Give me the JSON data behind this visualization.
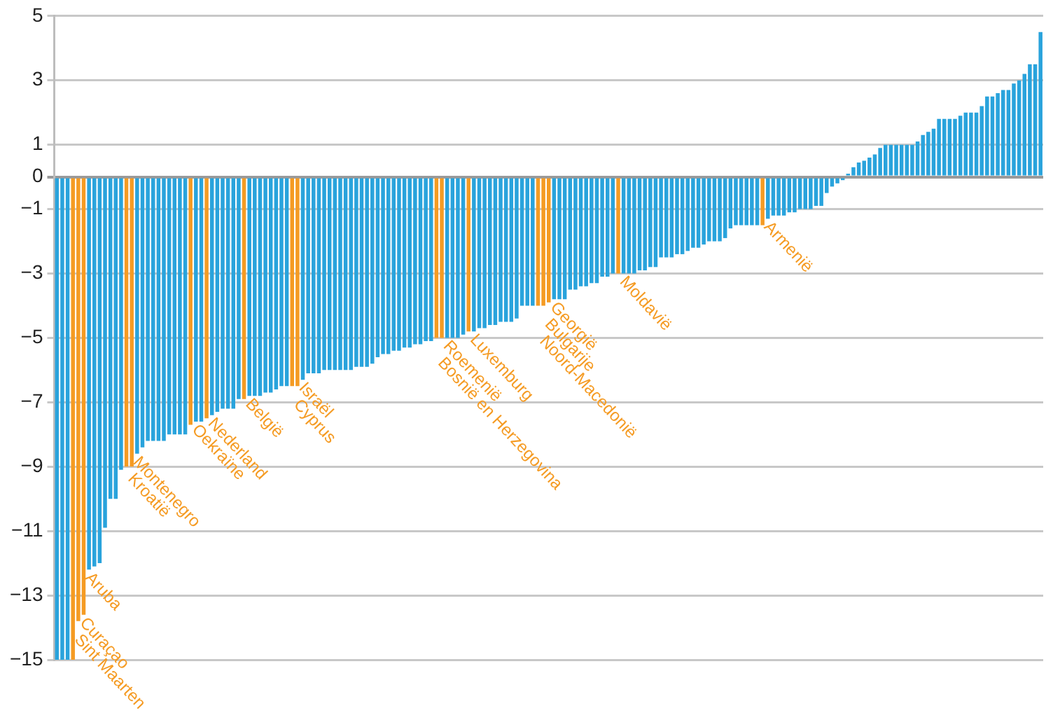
{
  "chart_data": {
    "type": "bar",
    "categories": [
      null,
      null,
      null,
      "Sint Maarten",
      "Curaçao",
      "Aruba",
      null,
      null,
      null,
      null,
      null,
      null,
      null,
      "Kroatië",
      "Montenegro",
      null,
      null,
      null,
      null,
      null,
      null,
      null,
      null,
      null,
      null,
      "Oekraïne",
      null,
      null,
      "Nederland",
      null,
      null,
      null,
      null,
      null,
      null,
      "België",
      null,
      null,
      null,
      null,
      null,
      null,
      null,
      null,
      "Cyprus",
      "Israël",
      null,
      null,
      null,
      null,
      null,
      null,
      null,
      null,
      null,
      null,
      null,
      null,
      null,
      null,
      null,
      null,
      null,
      null,
      null,
      null,
      null,
      null,
      null,
      null,
      null,
      "Bosnië en Herzegovina",
      "Roemenië",
      null,
      null,
      null,
      null,
      "Luxemburg",
      null,
      null,
      null,
      null,
      null,
      null,
      null,
      null,
      null,
      null,
      null,
      null,
      "Noord-Macedonië",
      "Bulgarije",
      "Georgië",
      null,
      null,
      null,
      null,
      null,
      null,
      null,
      null,
      null,
      null,
      null,
      null,
      "Moldavië",
      null,
      null,
      null,
      null,
      null,
      null,
      null,
      null,
      null,
      null,
      null,
      null,
      null,
      null,
      null,
      null,
      null,
      null,
      null,
      null,
      null,
      null,
      null,
      null,
      null,
      null,
      "Armenië",
      null,
      null,
      null,
      null,
      null,
      null,
      null,
      null,
      null,
      null,
      null,
      null,
      null,
      null,
      null,
      null,
      null,
      null,
      null,
      null,
      null,
      null,
      null,
      null,
      null,
      null,
      null,
      null,
      null,
      null,
      null,
      null,
      null,
      null,
      null,
      null,
      null,
      null,
      null,
      null,
      null,
      null,
      null,
      null,
      null,
      null,
      null,
      null,
      null,
      null,
      null,
      null
    ],
    "values": [
      -15,
      -15,
      -15,
      -15,
      -13.8,
      -13.6,
      -12.2,
      -12.1,
      -12,
      -10.9,
      -10,
      -10,
      -9.1,
      -9,
      -9,
      -8.6,
      -8.4,
      -8.2,
      -8.2,
      -8.2,
      -8.2,
      -8,
      -8,
      -8,
      -8,
      -7.7,
      -7.6,
      -7.6,
      -7.5,
      -7.4,
      -7.3,
      -7.2,
      -7.2,
      -7.2,
      -6.9,
      -6.9,
      -6.8,
      -6.8,
      -6.8,
      -6.7,
      -6.7,
      -6.6,
      -6.5,
      -6.5,
      -6.5,
      -6.5,
      -6.3,
      -6.1,
      -6.1,
      -6.1,
      -6,
      -6,
      -6,
      -6,
      -6,
      -6,
      -5.9,
      -5.9,
      -5.9,
      -5.8,
      -5.6,
      -5.5,
      -5.5,
      -5.4,
      -5.4,
      -5.3,
      -5.3,
      -5.2,
      -5.2,
      -5.1,
      -5.1,
      -5,
      -5,
      -5,
      -5,
      -5,
      -4.9,
      -4.8,
      -4.8,
      -4.7,
      -4.7,
      -4.6,
      -4.6,
      -4.5,
      -4.5,
      -4.5,
      -4.4,
      -4,
      -4,
      -4,
      -4,
      -4,
      -3.9,
      -3.8,
      -3.8,
      -3.8,
      -3.5,
      -3.5,
      -3.4,
      -3.4,
      -3.3,
      -3.3,
      -3.1,
      -3.1,
      -3,
      -3,
      -3,
      -3,
      -3,
      -2.9,
      -2.9,
      -2.8,
      -2.8,
      -2.5,
      -2.5,
      -2.5,
      -2.4,
      -2.4,
      -2.3,
      -2.2,
      -2.2,
      -2.1,
      -2,
      -2,
      -2,
      -1.9,
      -1.6,
      -1.5,
      -1.5,
      -1.5,
      -1.5,
      -1.5,
      -1.5,
      -1.3,
      -1.2,
      -1.2,
      -1.2,
      -1.1,
      -1.1,
      -1,
      -1,
      -1,
      -0.9,
      -0.9,
      -0.5,
      -0.3,
      -0.2,
      -0.1,
      0.1,
      0.3,
      0.45,
      0.5,
      0.6,
      0.7,
      0.9,
      1,
      1,
      1,
      1,
      1,
      1,
      1.1,
      1.3,
      1.4,
      1.5,
      1.8,
      1.8,
      1.8,
      1.8,
      1.9,
      2,
      2,
      2,
      2.2,
      2.5,
      2.5,
      2.6,
      2.7,
      2.7,
      2.9,
      3,
      3.2,
      3.5,
      3.5,
      4.5
    ],
    "colors": [
      "#29a3dc",
      "#29a3dc",
      "#29a3dc",
      "#f59b23",
      "#f59b23",
      "#f59b23",
      "#29a3dc",
      "#29a3dc",
      "#29a3dc",
      "#29a3dc",
      "#29a3dc",
      "#29a3dc",
      "#29a3dc",
      "#f59b23",
      "#f59b23",
      "#29a3dc",
      "#29a3dc",
      "#29a3dc",
      "#29a3dc",
      "#29a3dc",
      "#29a3dc",
      "#29a3dc",
      "#29a3dc",
      "#29a3dc",
      "#29a3dc",
      "#f59b23",
      "#29a3dc",
      "#29a3dc",
      "#f59b23",
      "#29a3dc",
      "#29a3dc",
      "#29a3dc",
      "#29a3dc",
      "#29a3dc",
      "#29a3dc",
      "#f59b23",
      "#29a3dc",
      "#29a3dc",
      "#29a3dc",
      "#29a3dc",
      "#29a3dc",
      "#29a3dc",
      "#29a3dc",
      "#29a3dc",
      "#f59b23",
      "#f59b23",
      "#29a3dc",
      "#29a3dc",
      "#29a3dc",
      "#29a3dc",
      "#29a3dc",
      "#29a3dc",
      "#29a3dc",
      "#29a3dc",
      "#29a3dc",
      "#29a3dc",
      "#29a3dc",
      "#29a3dc",
      "#29a3dc",
      "#29a3dc",
      "#29a3dc",
      "#29a3dc",
      "#29a3dc",
      "#29a3dc",
      "#29a3dc",
      "#29a3dc",
      "#29a3dc",
      "#29a3dc",
      "#29a3dc",
      "#29a3dc",
      "#29a3dc",
      "#f59b23",
      "#f59b23",
      "#29a3dc",
      "#29a3dc",
      "#29a3dc",
      "#29a3dc",
      "#f59b23",
      "#29a3dc",
      "#29a3dc",
      "#29a3dc",
      "#29a3dc",
      "#29a3dc",
      "#29a3dc",
      "#29a3dc",
      "#29a3dc",
      "#29a3dc",
      "#29a3dc",
      "#29a3dc",
      "#29a3dc",
      "#f59b23",
      "#f59b23",
      "#f59b23",
      "#29a3dc",
      "#29a3dc",
      "#29a3dc",
      "#29a3dc",
      "#29a3dc",
      "#29a3dc",
      "#29a3dc",
      "#29a3dc",
      "#29a3dc",
      "#29a3dc",
      "#29a3dc",
      "#29a3dc",
      "#f59b23",
      "#29a3dc",
      "#29a3dc",
      "#29a3dc",
      "#29a3dc",
      "#29a3dc",
      "#29a3dc",
      "#29a3dc",
      "#29a3dc",
      "#29a3dc",
      "#29a3dc",
      "#29a3dc",
      "#29a3dc",
      "#29a3dc",
      "#29a3dc",
      "#29a3dc",
      "#29a3dc",
      "#29a3dc",
      "#29a3dc",
      "#29a3dc",
      "#29a3dc",
      "#29a3dc",
      "#29a3dc",
      "#29a3dc",
      "#29a3dc",
      "#29a3dc",
      "#29a3dc",
      "#f59b23",
      "#29a3dc",
      "#29a3dc",
      "#29a3dc",
      "#29a3dc",
      "#29a3dc",
      "#29a3dc",
      "#29a3dc",
      "#29a3dc",
      "#29a3dc",
      "#29a3dc",
      "#29a3dc",
      "#29a3dc",
      "#29a3dc",
      "#29a3dc",
      "#29a3dc",
      "#29a3dc",
      "#29a3dc",
      "#29a3dc",
      "#29a3dc",
      "#29a3dc",
      "#29a3dc",
      "#29a3dc",
      "#29a3dc",
      "#29a3dc",
      "#29a3dc",
      "#29a3dc",
      "#29a3dc",
      "#29a3dc",
      "#29a3dc",
      "#29a3dc",
      "#29a3dc",
      "#29a3dc",
      "#29a3dc",
      "#29a3dc",
      "#29a3dc",
      "#29a3dc",
      "#29a3dc",
      "#29a3dc",
      "#29a3dc",
      "#29a3dc",
      "#29a3dc",
      "#29a3dc",
      "#29a3dc",
      "#29a3dc",
      "#29a3dc",
      "#29a3dc",
      "#29a3dc",
      "#29a3dc",
      "#29a3dc",
      "#29a3dc",
      "#29a3dc",
      "#29a3dc"
    ],
    "ylim": [
      -15,
      5
    ],
    "yticks": [
      -15,
      -13,
      -11,
      -9,
      -7,
      -5,
      -3,
      -1,
      0,
      1,
      3,
      5
    ],
    "grid": "y",
    "legend": false
  }
}
